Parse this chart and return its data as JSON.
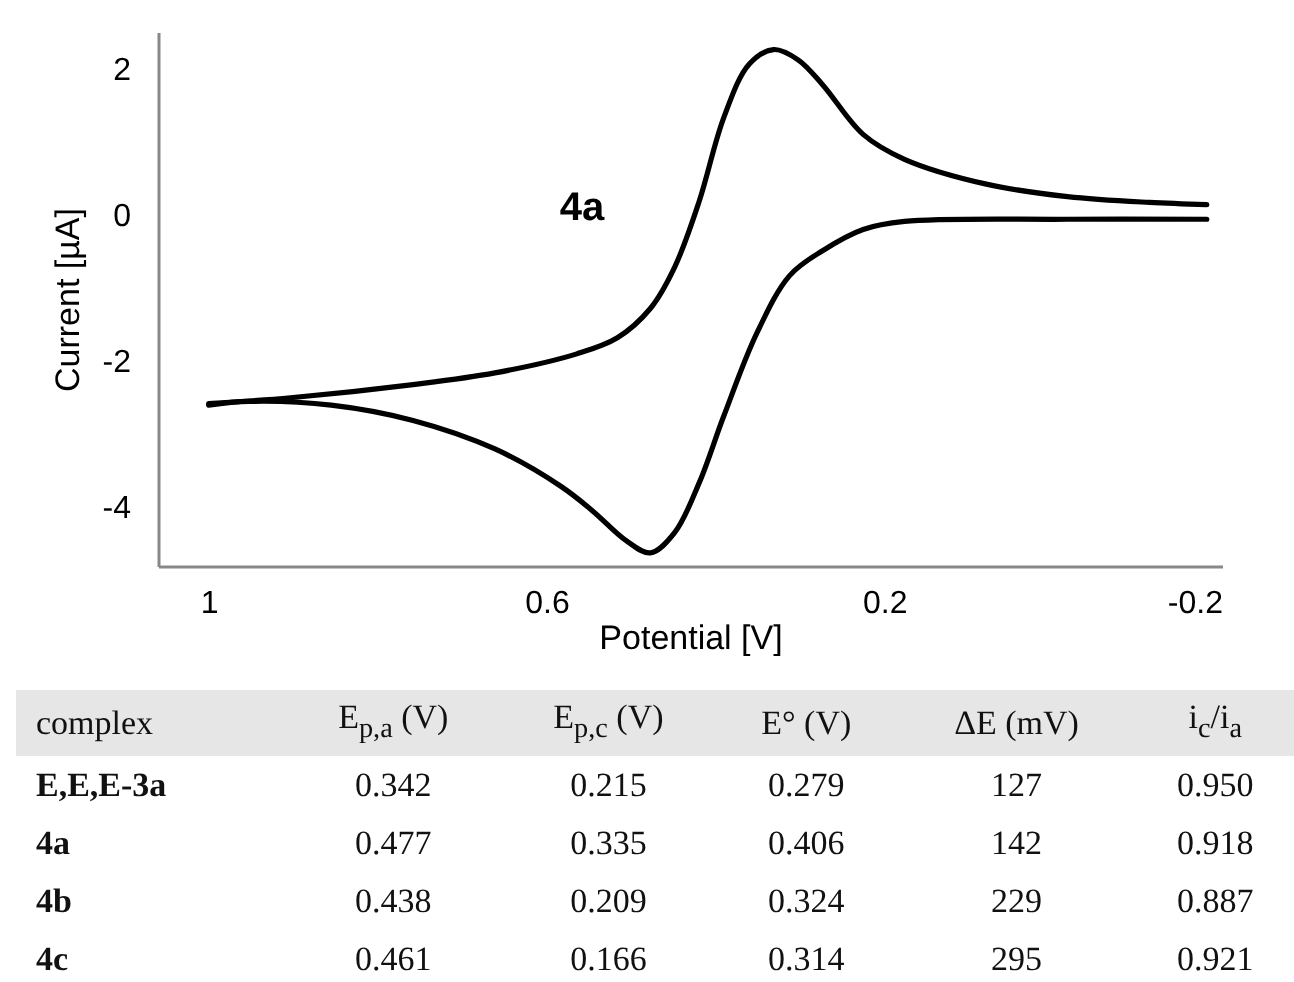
{
  "chart_data": [
    {
      "type": "line",
      "xlabel": "Potential [V]",
      "ylabel": "Current [µA]",
      "annotations": [
        "4a"
      ],
      "xlim": [
        1.06,
        -0.2
      ],
      "xticks": [
        1,
        0.6,
        0.2,
        -0.2
      ],
      "ylim": [
        -4.8,
        2.5
      ],
      "yticks": [
        2,
        0,
        -2,
        -4
      ],
      "grid": false,
      "marker": "none",
      "line_style": "solid",
      "series": [
        {
          "color": "#000000",
          "x": [
            1.0,
            0.903,
            0.758,
            0.661,
            0.564,
            0.516,
            0.477,
            0.448,
            0.419,
            0.39,
            0.36,
            0.331,
            0.302,
            0.273,
            0.225,
            0.176,
            0.079,
            -0.017,
            -0.114,
            -0.182
          ],
          "values": [
            -2.58,
            -2.5,
            -2.32,
            -2.16,
            -1.9,
            -1.68,
            -1.28,
            -0.71,
            0.19,
            1.33,
            2.06,
            2.26,
            2.12,
            1.78,
            1.1,
            0.76,
            0.42,
            0.25,
            0.17,
            0.14
          ]
        },
        {
          "color": "#000000",
          "x": [
            -0.182,
            -0.017,
            0.176,
            0.225,
            0.273,
            0.312,
            0.351,
            0.39,
            0.419,
            0.448,
            0.477,
            0.506,
            0.545,
            0.583,
            0.661,
            0.758,
            0.855,
            0.952,
            1.0
          ],
          "values": [
            -0.06,
            -0.06,
            -0.09,
            -0.2,
            -0.49,
            -0.83,
            -1.62,
            -2.75,
            -3.66,
            -4.34,
            -4.62,
            -4.45,
            -4.05,
            -3.71,
            -3.2,
            -2.81,
            -2.6,
            -2.55,
            -2.6
          ]
        }
      ]
    },
    {
      "type": "other",
      "annotations": [
        "complex",
        "E$_{p,a}$ (V)",
        "E$_{p,c}$ (V)",
        "E° (V)",
        "ΔE (mV)",
        "i$_{c}$/i$_{a}$",
        "E,E,E-3a",
        "0.342",
        "0.215",
        "0.279",
        "127",
        "0.950",
        "4a",
        "0.477",
        "0.335",
        "0.406",
        "142",
        "0.918",
        "4b",
        "0.438",
        "0.209",
        "0.324",
        "229",
        "0.887",
        "4c",
        "0.461",
        "0.166",
        "0.314",
        "295",
        "0.921"
      ]
    }
  ]
}
